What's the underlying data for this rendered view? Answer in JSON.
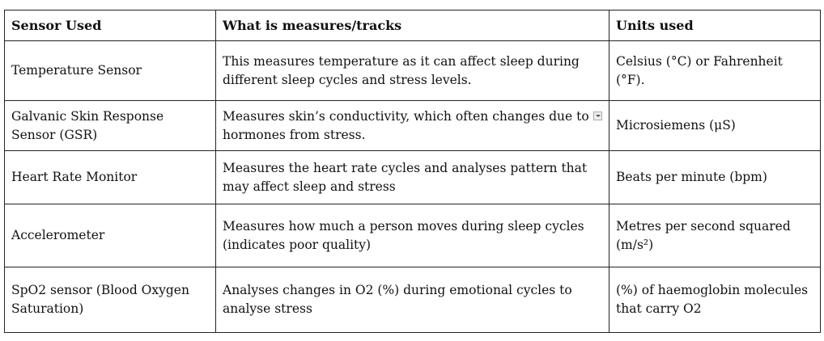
{
  "table": {
    "header": [
      "Sensor Used",
      "What is measures/tracks",
      "Units used"
    ],
    "rows": [
      [
        "Temperature Sensor",
        "This measures temperature as it can affect sleep during different sleep cycles and stress levels.",
        "Celsius (°C) or Fahrenheit (°F)."
      ],
      [
        "Galvanic Skin Response Sensor (GSR)",
        "Measures skin’s conductivity, which often changes due to hormones from stress.",
        "Microsiemens (μS)"
      ],
      [
        "Heart Rate Monitor",
        "Measures the heart rate cycles and analyses pattern that may affect sleep and stress",
        "Beats per minute (bpm)"
      ],
      [
        "Accelerometer",
        "Measures how much a person moves during sleep cycles (indicates poor quality)",
        "Metres per second squared (m/s²)"
      ],
      [
        "SpO2 sensor (Blood Oxygen Saturation)",
        "Analyses changes in O2 (%) during emotional cycles to analyse stress",
        "(%) of haemoglobin molecules that carry O2"
      ]
    ]
  }
}
